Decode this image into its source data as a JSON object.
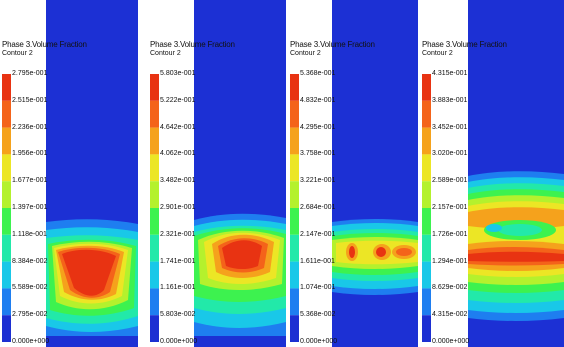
{
  "colors": {
    "scale": [
      "#1c2fd2",
      "#1e7ef0",
      "#19c8e8",
      "#22e9a9",
      "#3df24f",
      "#b4f12d",
      "#ece625",
      "#f5a21c",
      "#f4631a",
      "#e83312"
    ],
    "background_field": "#1c30d4"
  },
  "panels": [
    {
      "title": "Phase 3.Volume Fraction",
      "subtitle": "Contour 2",
      "ticks": [
        "2.795e-001",
        "2.515e-001",
        "2.236e-001",
        "1.956e-001",
        "1.677e-001",
        "1.397e-001",
        "1.118e-001",
        "8.384e-002",
        "5.589e-002",
        "2.795e-002",
        "0.000e+000"
      ]
    },
    {
      "title": "Phase 3.Volume Fraction",
      "subtitle": "Contour 2",
      "ticks": [
        "5.803e-001",
        "5.222e-001",
        "4.642e-001",
        "4.062e-001",
        "3.482e-001",
        "2.901e-001",
        "2.321e-001",
        "1.741e-001",
        "1.161e-001",
        "5.803e-002",
        "0.000e+000"
      ]
    },
    {
      "title": "Phase 3.Volume Fraction",
      "subtitle": "Contour 2",
      "ticks": [
        "5.368e-001",
        "4.832e-001",
        "4.295e-001",
        "3.758e-001",
        "3.221e-001",
        "2.684e-001",
        "2.147e-001",
        "1.611e-001",
        "1.074e-001",
        "5.368e-002",
        "0.000e+000"
      ]
    },
    {
      "title": "Phase 3.Volume Fraction",
      "subtitle": "Contour 2",
      "ticks": [
        "4.315e-001",
        "3.883e-001",
        "3.452e-001",
        "3.020e-001",
        "2.589e-001",
        "2.157e-001",
        "1.726e-001",
        "1.294e-001",
        "8.629e-002",
        "4.315e-002",
        "0.000e+000"
      ]
    }
  ]
}
